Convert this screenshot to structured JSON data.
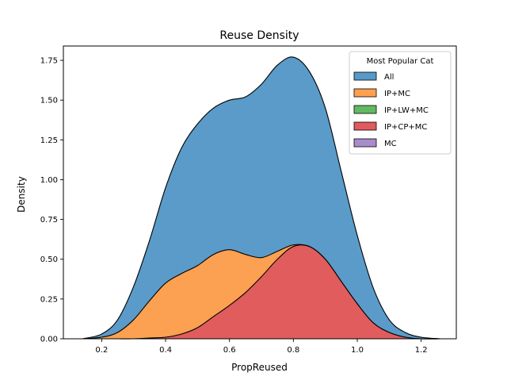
{
  "chart_data": {
    "type": "area",
    "title": "Reuse Density",
    "xlabel": "PropReused",
    "ylabel": "Density",
    "xlim": [
      0.08,
      1.31
    ],
    "ylim": [
      0,
      1.84
    ],
    "x_ticks": [
      0.2,
      0.4,
      0.6,
      0.8,
      1.0,
      1.2
    ],
    "x_tick_labels": [
      "0.2",
      "0.4",
      "0.6",
      "0.8",
      "1.0",
      "1.2"
    ],
    "y_ticks": [
      0,
      0.25,
      0.5,
      0.75,
      1.0,
      1.25,
      1.5,
      1.75
    ],
    "y_tick_labels": [
      "0.00",
      "0.25",
      "0.50",
      "0.75",
      "1.00",
      "1.25",
      "1.50",
      "1.75"
    ],
    "grid": false,
    "stacked": true,
    "legend": {
      "title": "Most Popular Cat",
      "position": "top-right",
      "entries": [
        {
          "label": "All",
          "color": "#5799c8"
        },
        {
          "label": "IP+MC",
          "color": "#ffa04f"
        },
        {
          "label": "IP+LW+MC",
          "color": "#62b962"
        },
        {
          "label": "IP+CP+MC",
          "color": "#e05b5e"
        },
        {
          "label": "MC",
          "color": "#a98ccb"
        }
      ]
    },
    "series": [
      {
        "name": "All",
        "color": "#5799c8",
        "x": [
          0.14,
          0.2,
          0.25,
          0.3,
          0.35,
          0.4,
          0.45,
          0.5,
          0.55,
          0.6,
          0.65,
          0.7,
          0.75,
          0.8,
          0.85,
          0.9,
          0.95,
          1.0,
          1.05,
          1.1,
          1.15,
          1.2,
          1.26
        ],
        "y": [
          0.0,
          0.03,
          0.12,
          0.33,
          0.62,
          0.95,
          1.2,
          1.35,
          1.45,
          1.5,
          1.52,
          1.6,
          1.72,
          1.77,
          1.68,
          1.45,
          1.05,
          0.65,
          0.32,
          0.12,
          0.04,
          0.01,
          0.0
        ]
      },
      {
        "name": "IP+MC",
        "color": "#ffa04f",
        "x": [
          0.14,
          0.2,
          0.25,
          0.3,
          0.35,
          0.4,
          0.45,
          0.5,
          0.55,
          0.6,
          0.65,
          0.7,
          0.75,
          0.8,
          0.85,
          0.9,
          0.95,
          1.0,
          1.05,
          1.1,
          1.15,
          1.2,
          1.26
        ],
        "y": [
          0.0,
          0.01,
          0.04,
          0.12,
          0.24,
          0.35,
          0.41,
          0.46,
          0.53,
          0.56,
          0.53,
          0.51,
          0.55,
          0.59,
          0.58,
          0.5,
          0.36,
          0.22,
          0.1,
          0.04,
          0.01,
          0.0,
          0.0
        ]
      },
      {
        "name": "IP+LW+MC",
        "color": "#62b962",
        "x": [
          0.14,
          0.2,
          0.25,
          0.3,
          0.35,
          0.4,
          0.45,
          0.5,
          0.55,
          0.6,
          0.65,
          0.7,
          0.75,
          0.8,
          0.85,
          0.9,
          0.95,
          1.0,
          1.05,
          1.1,
          1.15,
          1.2,
          1.26
        ],
        "y": [
          0.0,
          0.0,
          0.0,
          0.0,
          0.0,
          0.0,
          0.0,
          0.0,
          0.0,
          0.0,
          0.0,
          0.0,
          0.0,
          0.0,
          0.0,
          0.0,
          0.0,
          0.0,
          0.0,
          0.0,
          0.0,
          0.0,
          0.0
        ]
      },
      {
        "name": "IP+CP+MC",
        "color": "#e05b5e",
        "x": [
          0.14,
          0.2,
          0.25,
          0.3,
          0.35,
          0.4,
          0.45,
          0.5,
          0.55,
          0.6,
          0.65,
          0.7,
          0.75,
          0.8,
          0.85,
          0.9,
          0.95,
          1.0,
          1.05,
          1.1,
          1.15,
          1.2,
          1.26
        ],
        "y": [
          0.0,
          0.0,
          0.0,
          0.0,
          0.005,
          0.01,
          0.03,
          0.07,
          0.14,
          0.21,
          0.29,
          0.39,
          0.5,
          0.58,
          0.58,
          0.5,
          0.36,
          0.22,
          0.1,
          0.04,
          0.01,
          0.0,
          0.0
        ]
      },
      {
        "name": "MC",
        "color": "#a98ccb",
        "x": [
          0.14,
          0.2,
          0.25,
          0.3,
          0.35,
          0.4,
          0.45,
          0.5,
          0.55,
          0.6,
          0.65,
          0.7,
          0.75,
          0.8,
          0.85,
          0.9,
          0.95,
          1.0,
          1.05,
          1.1,
          1.15,
          1.2,
          1.26
        ],
        "y": [
          0.0,
          0.0,
          0.0,
          0.0,
          0.0,
          0.0,
          0.0,
          0.0,
          0.0,
          0.0,
          0.0,
          0.0,
          0.0,
          0.0,
          0.0,
          0.0,
          0.0,
          0.0,
          0.0,
          0.0,
          0.0,
          0.0,
          0.0
        ]
      }
    ]
  }
}
